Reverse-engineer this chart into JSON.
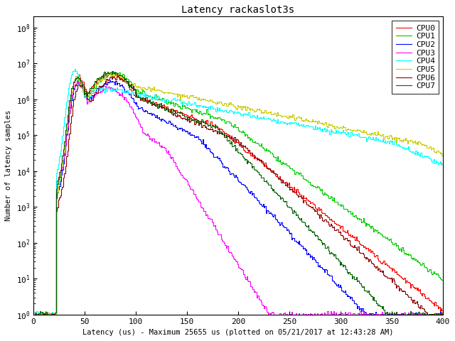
{
  "title": "Latency rackaslot3s",
  "xlabel": "Latency (us) - Maximum 25655 us (plotted on 05/21/2017 at 12:43:28 AM)",
  "ylabel": "Number of latency samples",
  "xlim": [
    0,
    400
  ],
  "ylim": [
    1,
    200000000
  ],
  "cpu_names": [
    "CPU0",
    "CPU1",
    "CPU2",
    "CPU3",
    "CPU4",
    "CPU5",
    "CPU6",
    "CPU7"
  ],
  "cpu_colors": [
    "#ff0000",
    "#00cc00",
    "#0000ff",
    "#ff00ff",
    "#00ffff",
    "#cccc00",
    "#8b0000",
    "#006400"
  ],
  "background_color": "#ffffff",
  "font_name": "DejaVu Sans Mono"
}
